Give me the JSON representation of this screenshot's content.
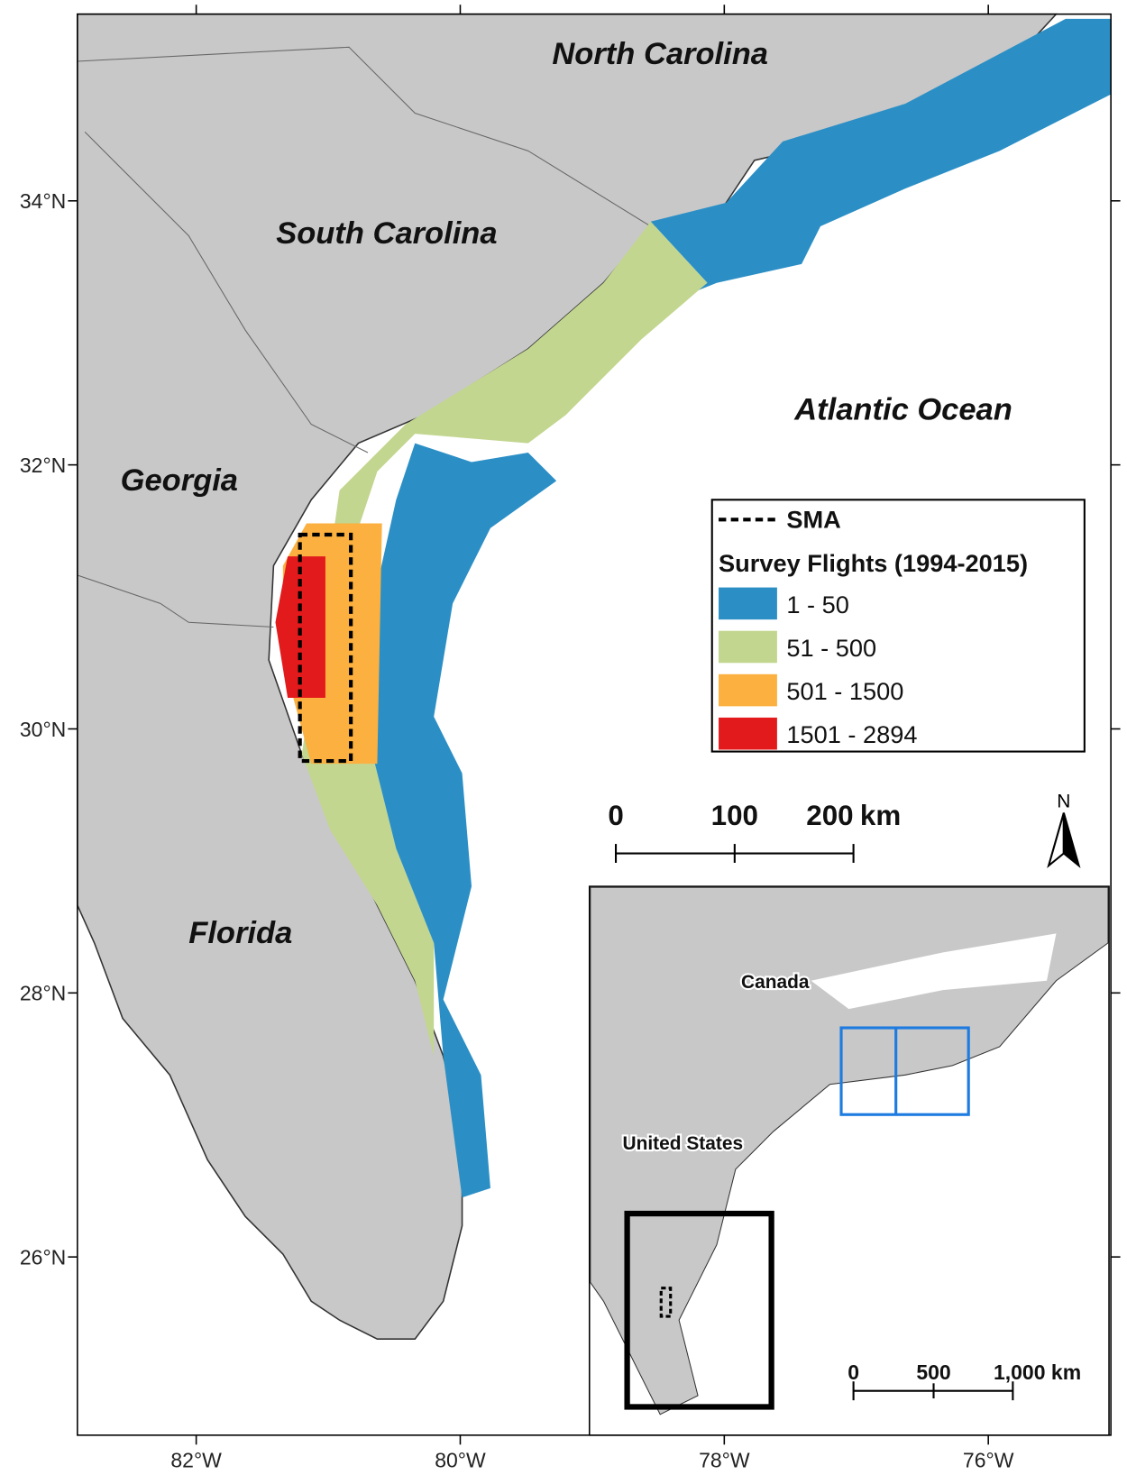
{
  "map": {
    "regions": [
      "North Carolina",
      "South Carolina",
      "Georgia",
      "Florida",
      "Atlantic Ocean"
    ],
    "lon_ticks": [
      "82°W",
      "80°W",
      "78°W",
      "76°W"
    ],
    "lat_ticks": [
      "34°N",
      "32°N",
      "30°N",
      "28°N",
      "26°N"
    ],
    "legend": {
      "sma": "SMA",
      "title": "Survey Flights (1994-2015)",
      "classes": [
        {
          "label": "1 - 50",
          "color": "#2b8fc6"
        },
        {
          "label": "51 - 500",
          "color": "#c2d68f"
        },
        {
          "label": "501 - 1500",
          "color": "#fbb040"
        },
        {
          "label": "1501 - 2894",
          "color": "#e31a1c"
        }
      ]
    },
    "scale_bar": {
      "labels": [
        "0",
        "100",
        "200"
      ],
      "unit": "km"
    },
    "north": "N",
    "inset": {
      "labels": [
        "Canada",
        "United States"
      ],
      "scale_labels": [
        "0",
        "500",
        "1,000 km"
      ]
    }
  }
}
